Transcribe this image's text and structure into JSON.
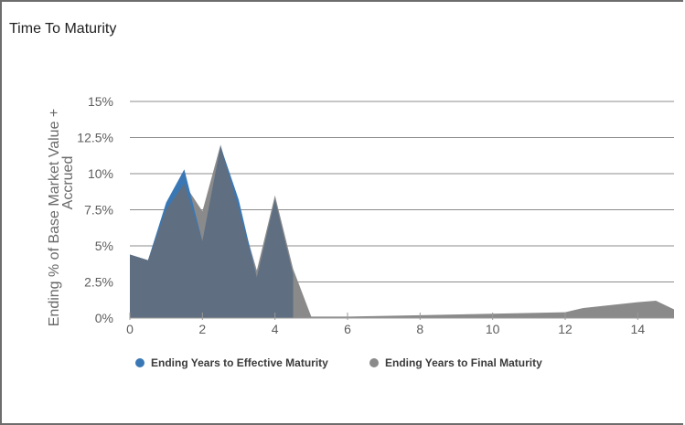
{
  "panel": {
    "title": "Time To Maturity"
  },
  "colors": {
    "effective": "#3a78b5",
    "final": "#8a8a8a",
    "overlap": "#5f6e80",
    "grid": "#8c8c8c",
    "border": "#6d6d6d"
  },
  "chart_data": {
    "type": "area",
    "title": "",
    "xlabel": "",
    "ylabel": "Ending % of Base Market Value + Accrued",
    "ylabel_lines": [
      "Ending % of Base Market Value +",
      "Accrued"
    ],
    "xlim": [
      0,
      15
    ],
    "ylim": [
      0,
      15
    ],
    "x_ticks": [
      0,
      2,
      4,
      6,
      8,
      10,
      12,
      14
    ],
    "x_tick_labels": [
      "0",
      "2",
      "4",
      "6",
      "8",
      "10",
      "12",
      "14"
    ],
    "y_ticks": [
      0,
      2.5,
      5,
      7.5,
      10,
      12.5,
      15
    ],
    "y_tick_labels": [
      "0%",
      "2.5%",
      "5%",
      "7.5%",
      "10%",
      "12.5%",
      "15%"
    ],
    "grid": true,
    "legend_position": "bottom",
    "series": [
      {
        "name": "Ending Years to Effective Maturity",
        "color_key": "effective",
        "x": [
          0,
          0.5,
          1,
          1.5,
          2,
          2.5,
          3,
          3.5,
          4,
          4.5
        ],
        "y": [
          4.4,
          4.0,
          8.0,
          10.3,
          5.3,
          11.9,
          8.2,
          2.8,
          8.2,
          3.0
        ]
      },
      {
        "name": "Ending Years to Final Maturity",
        "color_key": "final",
        "x": [
          0,
          0.5,
          1,
          1.5,
          2,
          2.5,
          3,
          3.5,
          4,
          4.5,
          5,
          6,
          8,
          10,
          12,
          12.5,
          14,
          14.5,
          15
        ],
        "y": [
          4.4,
          4.0,
          7.5,
          9.3,
          7.4,
          12.0,
          7.6,
          3.3,
          8.5,
          3.4,
          0.1,
          0.1,
          0.2,
          0.3,
          0.4,
          0.7,
          1.1,
          1.2,
          0.6
        ]
      }
    ]
  }
}
